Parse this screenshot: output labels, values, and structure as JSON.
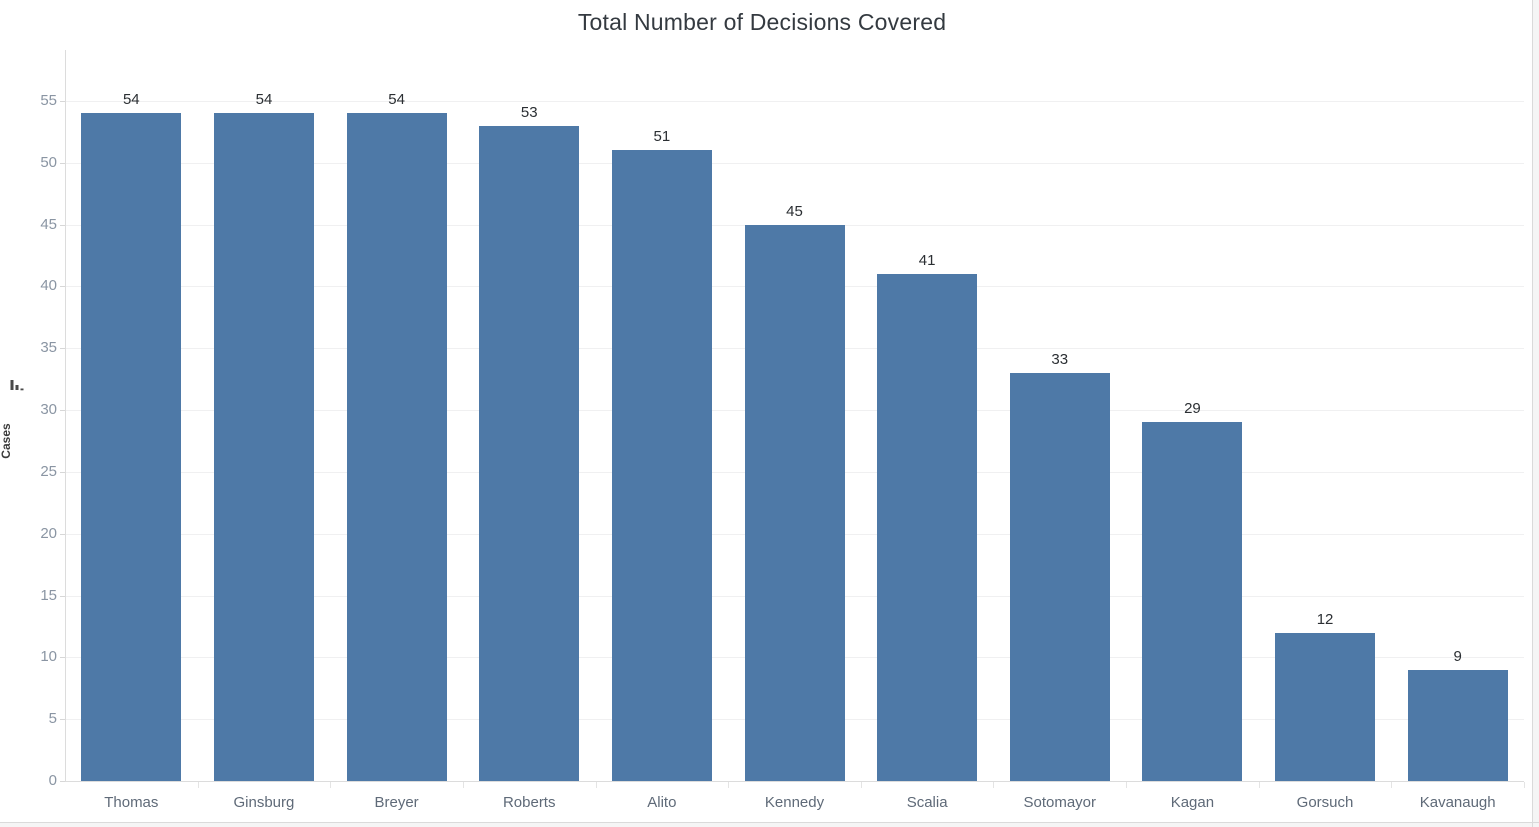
{
  "chart_data": {
    "type": "bar",
    "title": "Total Number of Decisions Covered",
    "categories": [
      "Thomas",
      "Ginsburg",
      "Breyer",
      "Roberts",
      "Alito",
      "Kennedy",
      "Scalia",
      "Sotomayor",
      "Kagan",
      "Gorsuch",
      "Kavanaugh"
    ],
    "values": [
      54,
      54,
      54,
      53,
      51,
      45,
      41,
      33,
      29,
      12,
      9
    ],
    "xlabel": "",
    "ylabel": "Cases",
    "ylim": [
      0,
      55
    ],
    "yticks": [
      0,
      5,
      10,
      15,
      20,
      25,
      30,
      35,
      40,
      45,
      50,
      55
    ],
    "grid": true,
    "value_labels_shown": true,
    "legend": "none",
    "sort_indicator": "descending"
  },
  "colors": {
    "bar": "#4e79a7",
    "title_text": "#343a40",
    "value_label": "#2b2f33",
    "tick_label": "#8a95a3",
    "category_label": "#5f6a78",
    "axis_line": "#dcdcdc",
    "gridline": "#f0f0f1",
    "ylabel_text": "#3c3c3c",
    "sort_icon": "#4a4a4a"
  }
}
